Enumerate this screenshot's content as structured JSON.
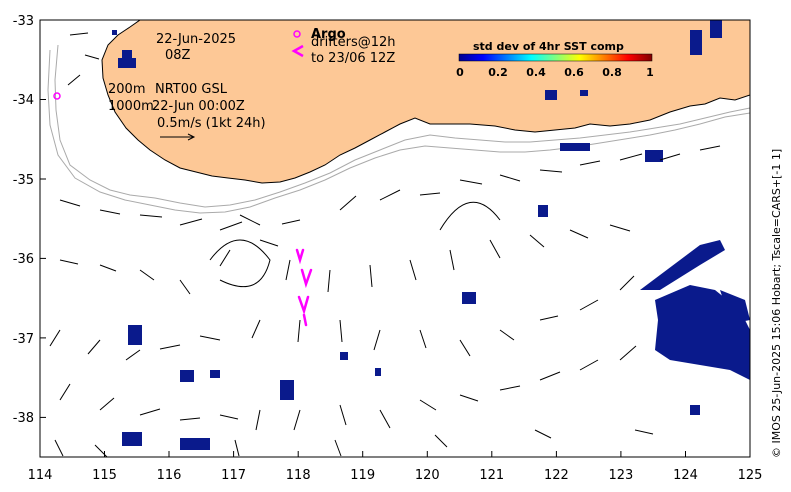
{
  "map": {
    "date_line": "22-Jun-2025",
    "time_line": "08Z",
    "isobath_label": "200m",
    "isobath_label_2": "1000m",
    "product_line": "NRT00 GSL",
    "product_time": "22-Jun 00:00Z",
    "scale_label": "0.5m/s (1kt 24h)",
    "argo_label": "Argo",
    "drifters_label": "drifters@12h",
    "drifters_to": "to 23/06 12Z",
    "credit": "© IMOS 25-Jun-2025 15:06 Hobart; Tscale=CARS+[-1 1]",
    "colors": {
      "land": "#fdc896",
      "ocean": "#ffffff",
      "sst_patch": "#0a1a8c",
      "drifter": "#ff00ff",
      "isobath": "#aaaaaa"
    }
  },
  "axes": {
    "x_ticks": [
      "114",
      "115",
      "116",
      "117",
      "118",
      "119",
      "120",
      "121",
      "122",
      "123",
      "124",
      "125"
    ],
    "y_ticks": [
      "-33",
      "-34",
      "-35",
      "-36",
      "-37",
      "-38"
    ],
    "lon_range": [
      114,
      125
    ],
    "lat_range": [
      -38.5,
      -33
    ]
  },
  "legend": {
    "title": "std dev of 4hr SST comp",
    "ticks": [
      "0",
      "0.2",
      "0.4",
      "0.6",
      "0.8",
      "1"
    ],
    "colormap": [
      "#00008f",
      "#0000ff",
      "#0080ff",
      "#00ffff",
      "#80ff80",
      "#ffff00",
      "#ff8000",
      "#ff0000",
      "#800000"
    ]
  }
}
